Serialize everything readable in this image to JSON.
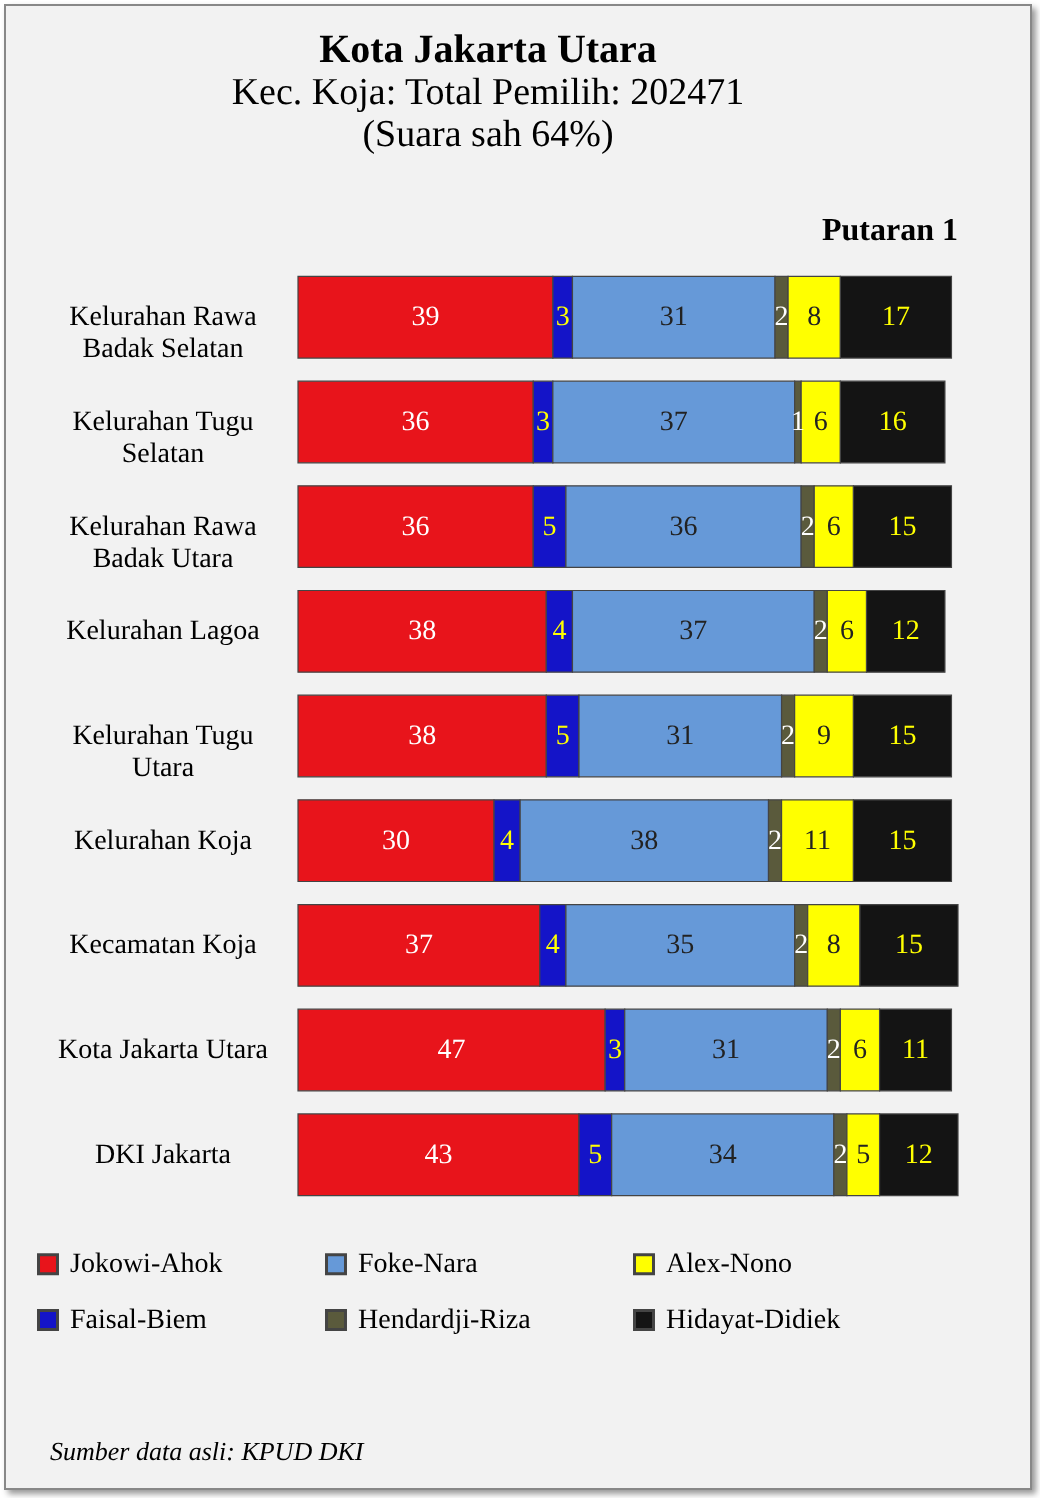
{
  "chart_data": {
    "type": "bar",
    "orientation": "horizontal",
    "stacked": true,
    "title": "Kota Jakarta Utara",
    "subtitle": "Kec. Koja: Total Pemilih: 202471\n(Suara sah 64%)",
    "annotations": [
      "Putaran 1",
      "Sumber data asli: KPUD DKI"
    ],
    "categories": [
      "Kelurahan Rawa Badak Selatan",
      "Kelurahan Tugu Selatan",
      "Kelurahan Rawa Badak Utara",
      "Kelurahan Lagoa",
      "Kelurahan Tugu Utara",
      "Kelurahan Koja",
      "Kecamatan Koja",
      "Kota Jakarta Utara",
      "DKI Jakarta"
    ],
    "series": [
      {
        "name": "Jokowi-Ahok",
        "color": "#e8141b",
        "values": [
          39,
          36,
          36,
          38,
          38,
          30,
          37,
          47,
          43
        ]
      },
      {
        "name": "Faisal-Biem",
        "color": "#1414c8",
        "values": [
          3,
          3,
          5,
          4,
          5,
          4,
          4,
          3,
          5
        ]
      },
      {
        "name": "Foke-Nara",
        "color": "#6699d8",
        "values": [
          31,
          37,
          36,
          37,
          31,
          38,
          35,
          31,
          34
        ]
      },
      {
        "name": "Hendardji-Riza",
        "color": "#5a5a3c",
        "values": [
          2,
          1,
          2,
          2,
          2,
          2,
          2,
          2,
          2
        ]
      },
      {
        "name": "Alex-Nono",
        "color": "#ffff00",
        "values": [
          8,
          6,
          6,
          6,
          9,
          11,
          8,
          6,
          5
        ]
      },
      {
        "name": "Hidayat-Didiek",
        "color": "#141414",
        "values": [
          17,
          16,
          15,
          12,
          15,
          15,
          15,
          11,
          12
        ]
      }
    ],
    "xlim": [
      0,
      101
    ],
    "tick_labels": "y",
    "data_labels": true,
    "legend": "bottom"
  }
}
